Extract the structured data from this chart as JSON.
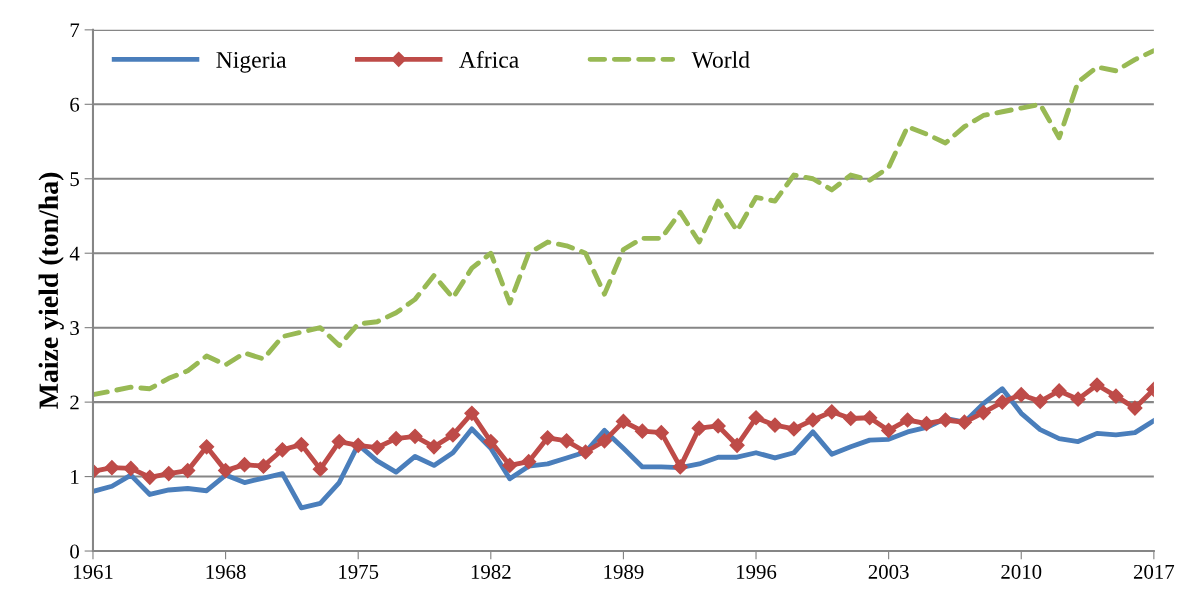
{
  "chart_data": {
    "type": "line",
    "ylabel": "Maize yield (ton/ha)",
    "x": [
      1961,
      1962,
      1963,
      1964,
      1965,
      1966,
      1967,
      1968,
      1969,
      1970,
      1971,
      1972,
      1973,
      1974,
      1975,
      1976,
      1977,
      1978,
      1979,
      1980,
      1981,
      1982,
      1983,
      1984,
      1985,
      1986,
      1987,
      1988,
      1989,
      1990,
      1991,
      1992,
      1993,
      1994,
      1995,
      1996,
      1997,
      1998,
      1999,
      2000,
      2001,
      2002,
      2003,
      2004,
      2005,
      2006,
      2007,
      2008,
      2009,
      2010,
      2011,
      2012,
      2013,
      2014,
      2015,
      2016,
      2017
    ],
    "series": [
      {
        "name": "Nigeria",
        "color": "#4a7ebb",
        "line_style": "solid",
        "marker": "none",
        "values": [
          0.8,
          0.87,
          1.02,
          0.76,
          0.82,
          0.84,
          0.81,
          1.02,
          0.92,
          0.98,
          1.04,
          0.58,
          0.64,
          0.92,
          1.43,
          1.21,
          1.06,
          1.27,
          1.15,
          1.32,
          1.64,
          1.38,
          0.97,
          1.14,
          1.17,
          1.25,
          1.33,
          1.62,
          1.38,
          1.13,
          1.13,
          1.12,
          1.17,
          1.26,
          1.26,
          1.32,
          1.25,
          1.32,
          1.6,
          1.3,
          1.4,
          1.49,
          1.5,
          1.6,
          1.66,
          1.78,
          1.73,
          1.98,
          2.18,
          1.85,
          1.63,
          1.51,
          1.47,
          1.58,
          1.56,
          1.59,
          1.75
        ]
      },
      {
        "name": "Africa",
        "color": "#be4b48",
        "line_style": "solid",
        "marker": "diamond",
        "values": [
          1.07,
          1.12,
          1.11,
          0.99,
          1.04,
          1.08,
          1.4,
          1.08,
          1.16,
          1.14,
          1.36,
          1.43,
          1.1,
          1.47,
          1.42,
          1.39,
          1.51,
          1.54,
          1.4,
          1.56,
          1.85,
          1.47,
          1.15,
          1.2,
          1.52,
          1.48,
          1.33,
          1.48,
          1.74,
          1.61,
          1.59,
          1.13,
          1.65,
          1.68,
          1.42,
          1.79,
          1.69,
          1.64,
          1.76,
          1.87,
          1.78,
          1.79,
          1.62,
          1.76,
          1.71,
          1.76,
          1.73,
          1.86,
          2.0,
          2.1,
          2.01,
          2.15,
          2.04,
          2.23,
          2.08,
          1.92,
          2.17
        ]
      },
      {
        "name": "World",
        "color": "#98b954",
        "line_style": "dashed",
        "marker": "none",
        "values": [
          2.1,
          2.15,
          2.2,
          2.18,
          2.32,
          2.42,
          2.62,
          2.5,
          2.66,
          2.58,
          2.88,
          2.94,
          3.0,
          2.76,
          3.05,
          3.08,
          3.2,
          3.38,
          3.7,
          3.4,
          3.8,
          4.0,
          3.33,
          4.0,
          4.15,
          4.1,
          4.0,
          3.45,
          4.05,
          4.2,
          4.2,
          4.55,
          4.15,
          4.7,
          4.3,
          4.75,
          4.7,
          5.05,
          5.0,
          4.85,
          5.05,
          4.98,
          5.15,
          5.7,
          5.6,
          5.48,
          5.7,
          5.85,
          5.9,
          5.95,
          6.0,
          5.55,
          6.3,
          6.5,
          6.45,
          6.6,
          6.72
        ]
      }
    ],
    "xlim": [
      1961,
      2017
    ],
    "xticks": [
      1961,
      1968,
      1975,
      1982,
      1989,
      1996,
      2003,
      2010,
      2017
    ],
    "ylim": [
      0,
      7
    ],
    "yticks": [
      0,
      1,
      2,
      3,
      4,
      5,
      6,
      7
    ],
    "grid": "y",
    "legend": "top left"
  }
}
